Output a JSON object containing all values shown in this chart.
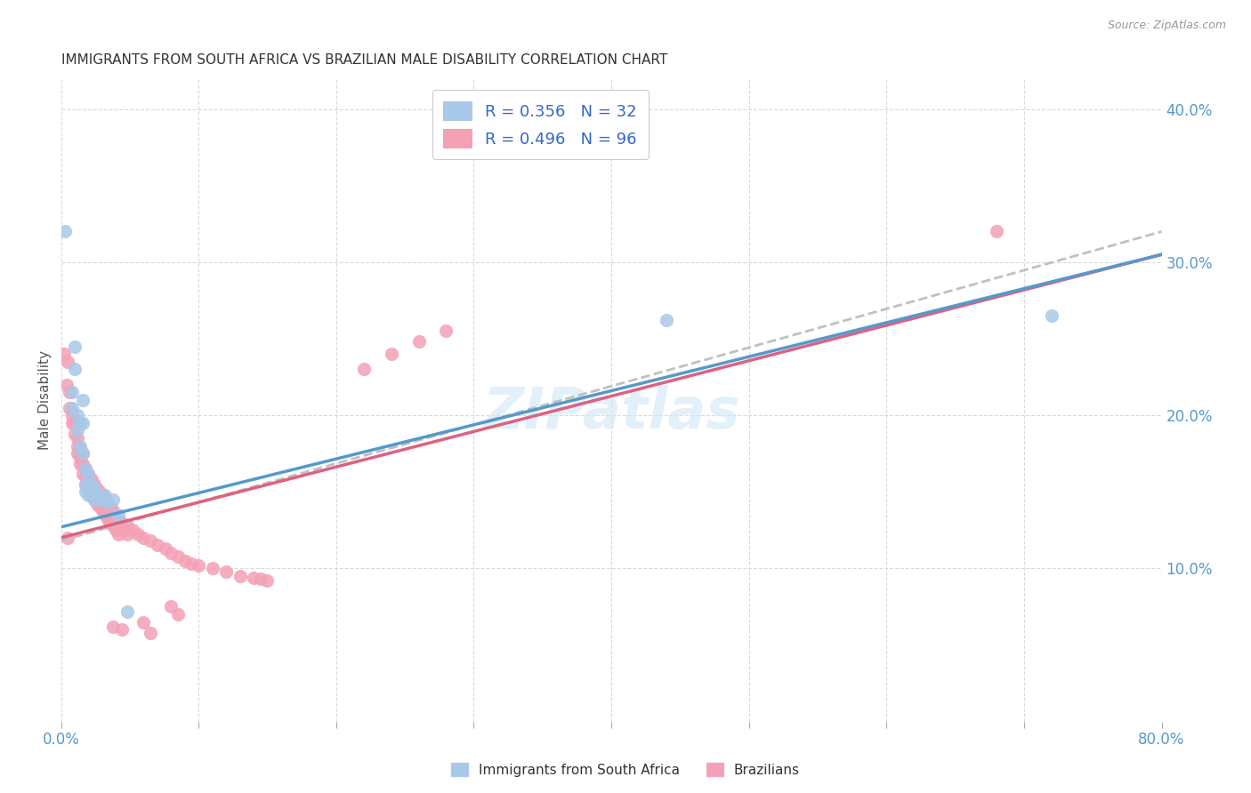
{
  "title": "IMMIGRANTS FROM SOUTH AFRICA VS BRAZILIAN MALE DISABILITY CORRELATION CHART",
  "source": "Source: ZipAtlas.com",
  "ylabel": "Male Disability",
  "xlim": [
    0.0,
    0.8
  ],
  "ylim": [
    0.0,
    0.42
  ],
  "watermark": "ZIPatlas",
  "color_blue": "#a8c8e8",
  "color_pink": "#f4a0b5",
  "line_blue": "#5599cc",
  "line_pink": "#e06080",
  "line_gray_dash": "#c0c0c0",
  "trendline_blue": [
    0.127,
    0.305
  ],
  "trendline_pink": [
    0.12,
    0.305
  ],
  "trendline_gray": [
    0.118,
    0.32
  ],
  "blue_scatter": [
    [
      0.003,
      0.32
    ],
    [
      0.008,
      0.215
    ],
    [
      0.008,
      0.205
    ],
    [
      0.01,
      0.245
    ],
    [
      0.01,
      0.23
    ],
    [
      0.012,
      0.2
    ],
    [
      0.012,
      0.19
    ],
    [
      0.014,
      0.195
    ],
    [
      0.014,
      0.18
    ],
    [
      0.016,
      0.21
    ],
    [
      0.016,
      0.195
    ],
    [
      0.016,
      0.175
    ],
    [
      0.018,
      0.165
    ],
    [
      0.018,
      0.155
    ],
    [
      0.018,
      0.15
    ],
    [
      0.02,
      0.162
    ],
    [
      0.02,
      0.155
    ],
    [
      0.02,
      0.148
    ],
    [
      0.022,
      0.155
    ],
    [
      0.022,
      0.148
    ],
    [
      0.024,
      0.152
    ],
    [
      0.024,
      0.145
    ],
    [
      0.026,
      0.148
    ],
    [
      0.028,
      0.148
    ],
    [
      0.03,
      0.145
    ],
    [
      0.032,
      0.148
    ],
    [
      0.034,
      0.143
    ],
    [
      0.038,
      0.145
    ],
    [
      0.042,
      0.135
    ],
    [
      0.048,
      0.072
    ],
    [
      0.44,
      0.262
    ],
    [
      0.72,
      0.265
    ]
  ],
  "pink_scatter": [
    [
      0.002,
      0.24
    ],
    [
      0.004,
      0.22
    ],
    [
      0.005,
      0.235
    ],
    [
      0.006,
      0.215
    ],
    [
      0.006,
      0.205
    ],
    [
      0.008,
      0.2
    ],
    [
      0.008,
      0.195
    ],
    [
      0.01,
      0.195
    ],
    [
      0.01,
      0.188
    ],
    [
      0.012,
      0.185
    ],
    [
      0.012,
      0.18
    ],
    [
      0.012,
      0.175
    ],
    [
      0.014,
      0.178
    ],
    [
      0.014,
      0.172
    ],
    [
      0.014,
      0.168
    ],
    [
      0.016,
      0.175
    ],
    [
      0.016,
      0.168
    ],
    [
      0.016,
      0.162
    ],
    [
      0.018,
      0.165
    ],
    [
      0.018,
      0.16
    ],
    [
      0.018,
      0.155
    ],
    [
      0.02,
      0.162
    ],
    [
      0.02,
      0.158
    ],
    [
      0.02,
      0.152
    ],
    [
      0.022,
      0.158
    ],
    [
      0.022,
      0.152
    ],
    [
      0.022,
      0.148
    ],
    [
      0.024,
      0.155
    ],
    [
      0.024,
      0.15
    ],
    [
      0.024,
      0.145
    ],
    [
      0.026,
      0.152
    ],
    [
      0.026,
      0.148
    ],
    [
      0.026,
      0.142
    ],
    [
      0.028,
      0.15
    ],
    [
      0.028,
      0.145
    ],
    [
      0.028,
      0.14
    ],
    [
      0.03,
      0.148
    ],
    [
      0.03,
      0.142
    ],
    [
      0.03,
      0.138
    ],
    [
      0.032,
      0.145
    ],
    [
      0.032,
      0.14
    ],
    [
      0.032,
      0.135
    ],
    [
      0.034,
      0.142
    ],
    [
      0.034,
      0.138
    ],
    [
      0.034,
      0.132
    ],
    [
      0.036,
      0.14
    ],
    [
      0.036,
      0.135
    ],
    [
      0.036,
      0.13
    ],
    [
      0.038,
      0.138
    ],
    [
      0.038,
      0.133
    ],
    [
      0.038,
      0.128
    ],
    [
      0.04,
      0.135
    ],
    [
      0.04,
      0.13
    ],
    [
      0.04,
      0.125
    ],
    [
      0.042,
      0.132
    ],
    [
      0.042,
      0.128
    ],
    [
      0.042,
      0.122
    ],
    [
      0.044,
      0.13
    ],
    [
      0.044,
      0.125
    ],
    [
      0.048,
      0.128
    ],
    [
      0.048,
      0.122
    ],
    [
      0.052,
      0.125
    ],
    [
      0.056,
      0.122
    ],
    [
      0.06,
      0.12
    ],
    [
      0.065,
      0.118
    ],
    [
      0.07,
      0.115
    ],
    [
      0.076,
      0.113
    ],
    [
      0.08,
      0.11
    ],
    [
      0.085,
      0.108
    ],
    [
      0.09,
      0.105
    ],
    [
      0.095,
      0.103
    ],
    [
      0.1,
      0.102
    ],
    [
      0.11,
      0.1
    ],
    [
      0.12,
      0.098
    ],
    [
      0.13,
      0.095
    ],
    [
      0.14,
      0.094
    ],
    [
      0.145,
      0.093
    ],
    [
      0.15,
      0.092
    ],
    [
      0.038,
      0.062
    ],
    [
      0.044,
      0.06
    ],
    [
      0.06,
      0.065
    ],
    [
      0.065,
      0.058
    ],
    [
      0.08,
      0.075
    ],
    [
      0.085,
      0.07
    ],
    [
      0.22,
      0.23
    ],
    [
      0.24,
      0.24
    ],
    [
      0.26,
      0.248
    ],
    [
      0.28,
      0.255
    ],
    [
      0.68,
      0.32
    ],
    [
      0.005,
      0.12
    ]
  ]
}
